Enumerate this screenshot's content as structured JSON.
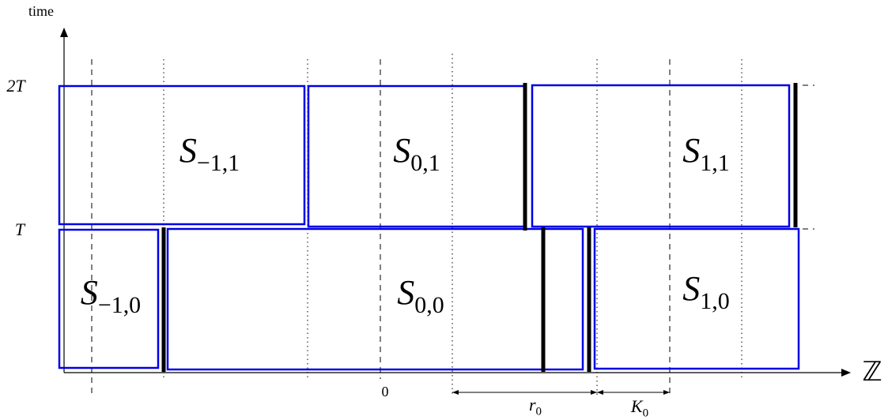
{
  "axis_labels": {
    "time": "time",
    "space": "ℤ",
    "two_t": "2T",
    "t": "T",
    "zero": "0"
  },
  "blocks": [
    {
      "base": "S",
      "sub": "−1,1"
    },
    {
      "base": "S",
      "sub": "0,1"
    },
    {
      "base": "S",
      "sub": "1,1"
    },
    {
      "base": "S",
      "sub": "−1,0"
    },
    {
      "base": "S",
      "sub": "0,0"
    },
    {
      "base": "S",
      "sub": "1,0"
    }
  ],
  "spans": [
    {
      "base": "r",
      "sub": "0"
    },
    {
      "base": "K",
      "sub": "0"
    }
  ]
}
